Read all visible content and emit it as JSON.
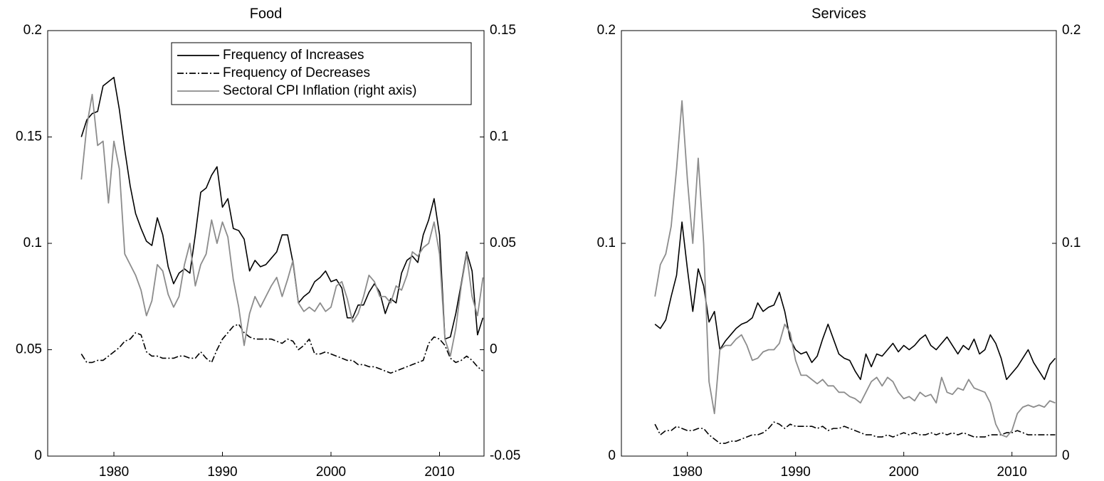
{
  "chart_data": [
    {
      "type": "line",
      "title": "Food",
      "x": [
        1977,
        1977.5,
        1978,
        1978.5,
        1979,
        1979.5,
        1980,
        1980.5,
        1981,
        1981.5,
        1982,
        1982.5,
        1983,
        1983.5,
        1984,
        1984.5,
        1985,
        1985.5,
        1986,
        1986.5,
        1987,
        1987.5,
        1988,
        1988.5,
        1989,
        1989.5,
        1990,
        1990.5,
        1991,
        1991.5,
        1992,
        1992.5,
        1993,
        1993.5,
        1994,
        1994.5,
        1995,
        1995.5,
        1996,
        1996.5,
        1997,
        1997.5,
        1998,
        1998.5,
        1999,
        1999.5,
        2000,
        2000.5,
        2001,
        2001.5,
        2002,
        2002.5,
        2003,
        2003.5,
        2004,
        2004.5,
        2005,
        2005.5,
        2006,
        2006.5,
        2007,
        2007.5,
        2008,
        2008.5,
        2009,
        2009.5,
        2010,
        2010.5,
        2011,
        2011.5,
        2012,
        2012.5,
        2013,
        2013.5,
        2014
      ],
      "series": [
        {
          "name": "Frequency of Increases",
          "color": "#000000",
          "dash": "solid",
          "values": [
            0.15,
            0.158,
            0.161,
            0.162,
            0.174,
            0.176,
            0.178,
            0.163,
            0.144,
            0.127,
            0.114,
            0.107,
            0.101,
            0.099,
            0.112,
            0.104,
            0.089,
            0.081,
            0.086,
            0.088,
            0.086,
            0.104,
            0.124,
            0.126,
            0.132,
            0.136,
            0.117,
            0.121,
            0.107,
            0.106,
            0.102,
            0.087,
            0.092,
            0.089,
            0.09,
            0.093,
            0.096,
            0.104,
            0.104,
            0.091,
            0.072,
            0.075,
            0.077,
            0.082,
            0.084,
            0.087,
            0.082,
            0.083,
            0.079,
            0.065,
            0.065,
            0.071,
            0.071,
            0.077,
            0.081,
            0.077,
            0.067,
            0.074,
            0.072,
            0.086,
            0.092,
            0.094,
            0.091,
            0.104,
            0.111,
            0.121,
            0.104,
            0.055,
            0.056,
            0.067,
            0.081,
            0.096,
            0.087,
            0.057,
            0.065
          ]
        },
        {
          "name": "Frequency of Decreases",
          "color": "#000000",
          "dash": "dashdot",
          "values": [
            0.048,
            0.044,
            0.044,
            0.045,
            0.045,
            0.047,
            0.049,
            0.051,
            0.054,
            0.055,
            0.058,
            0.057,
            0.049,
            0.047,
            0.047,
            0.046,
            0.046,
            0.046,
            0.047,
            0.047,
            0.046,
            0.046,
            0.049,
            0.046,
            0.044,
            0.05,
            0.055,
            0.058,
            0.061,
            0.062,
            0.058,
            0.056,
            0.055,
            0.055,
            0.055,
            0.055,
            0.054,
            0.053,
            0.055,
            0.054,
            0.05,
            0.052,
            0.055,
            0.048,
            0.048,
            0.049,
            0.048,
            0.047,
            0.046,
            0.045,
            0.045,
            0.043,
            0.043,
            0.042,
            0.042,
            0.041,
            0.04,
            0.039,
            0.04,
            0.041,
            0.042,
            0.043,
            0.044,
            0.045,
            0.053,
            0.056,
            0.055,
            0.052,
            0.046,
            0.044,
            0.045,
            0.047,
            0.045,
            0.042,
            0.04
          ]
        },
        {
          "name": "Sectoral CPI Inflation (right axis)",
          "color": "#8c8c8c",
          "dash": "solid",
          "axis": "y2",
          "values": [
            0.08,
            0.105,
            0.12,
            0.096,
            0.098,
            0.069,
            0.098,
            0.085,
            0.045,
            0.04,
            0.035,
            0.028,
            0.016,
            0.023,
            0.04,
            0.037,
            0.026,
            0.02,
            0.025,
            0.04,
            0.05,
            0.03,
            0.04,
            0.045,
            0.061,
            0.05,
            0.06,
            0.053,
            0.033,
            0.02,
            0.002,
            0.017,
            0.025,
            0.02,
            0.025,
            0.03,
            0.034,
            0.025,
            0.033,
            0.042,
            0.022,
            0.018,
            0.02,
            0.018,
            0.022,
            0.018,
            0.02,
            0.03,
            0.032,
            0.024,
            0.013,
            0.017,
            0.025,
            0.035,
            0.032,
            0.025,
            0.025,
            0.022,
            0.03,
            0.028,
            0.035,
            0.046,
            0.044,
            0.048,
            0.05,
            0.06,
            0.045,
            0.005,
            -0.003,
            0.01,
            0.03,
            0.045,
            0.025,
            0.016,
            0.034
          ]
        }
      ],
      "xlim": [
        1973.9,
        2014.1
      ],
      "xticks": [
        1980,
        1990,
        2000,
        2010
      ],
      "ylim": [
        0,
        0.2
      ],
      "yticks": [
        0,
        0.05,
        0.1,
        0.15,
        0.2
      ],
      "y2lim": [
        -0.05,
        0.15
      ],
      "y2ticks": [
        -0.05,
        0,
        0.05,
        0.1,
        0.15
      ],
      "legend": "upper right"
    },
    {
      "type": "line",
      "title": "Services",
      "x": [
        1977,
        1977.5,
        1978,
        1978.5,
        1979,
        1979.5,
        1980,
        1980.5,
        1981,
        1981.5,
        1982,
        1982.5,
        1983,
        1983.5,
        1984,
        1984.5,
        1985,
        1985.5,
        1986,
        1986.5,
        1987,
        1987.5,
        1988,
        1988.5,
        1989,
        1989.5,
        1990,
        1990.5,
        1991,
        1991.5,
        1992,
        1992.5,
        1993,
        1993.5,
        1994,
        1994.5,
        1995,
        1995.5,
        1996,
        1996.5,
        1997,
        1997.5,
        1998,
        1998.5,
        1999,
        1999.5,
        2000,
        2000.5,
        2001,
        2001.5,
        2002,
        2002.5,
        2003,
        2003.5,
        2004,
        2004.5,
        2005,
        2005.5,
        2006,
        2006.5,
        2007,
        2007.5,
        2008,
        2008.5,
        2009,
        2009.5,
        2010,
        2010.5,
        2011,
        2011.5,
        2012,
        2012.5,
        2013,
        2013.5,
        2014
      ],
      "series": [
        {
          "color": "#000000",
          "dash": "solid",
          "values": [
            0.062,
            0.06,
            0.064,
            0.075,
            0.085,
            0.11,
            0.088,
            0.068,
            0.088,
            0.08,
            0.063,
            0.068,
            0.05,
            0.054,
            0.057,
            0.06,
            0.062,
            0.063,
            0.065,
            0.072,
            0.068,
            0.07,
            0.071,
            0.077,
            0.068,
            0.055,
            0.05,
            0.048,
            0.049,
            0.044,
            0.047,
            0.055,
            0.062,
            0.055,
            0.048,
            0.046,
            0.045,
            0.04,
            0.036,
            0.048,
            0.042,
            0.048,
            0.047,
            0.05,
            0.053,
            0.049,
            0.052,
            0.05,
            0.052,
            0.055,
            0.057,
            0.052,
            0.05,
            0.053,
            0.056,
            0.052,
            0.048,
            0.052,
            0.05,
            0.055,
            0.048,
            0.05,
            0.057,
            0.053,
            0.046,
            0.036,
            0.039,
            0.042,
            0.046,
            0.05,
            0.044,
            0.04,
            0.036,
            0.043,
            0.046
          ]
        },
        {
          "color": "#000000",
          "dash": "dashdot",
          "values": [
            0.015,
            0.01,
            0.012,
            0.012,
            0.014,
            0.013,
            0.012,
            0.012,
            0.013,
            0.013,
            0.01,
            0.008,
            0.006,
            0.006,
            0.007,
            0.007,
            0.008,
            0.009,
            0.01,
            0.01,
            0.011,
            0.013,
            0.016,
            0.015,
            0.013,
            0.015,
            0.014,
            0.014,
            0.014,
            0.014,
            0.013,
            0.014,
            0.012,
            0.013,
            0.013,
            0.014,
            0.013,
            0.012,
            0.011,
            0.01,
            0.01,
            0.009,
            0.009,
            0.01,
            0.009,
            0.01,
            0.011,
            0.01,
            0.011,
            0.01,
            0.01,
            0.011,
            0.01,
            0.011,
            0.01,
            0.011,
            0.01,
            0.011,
            0.01,
            0.009,
            0.009,
            0.009,
            0.01,
            0.01,
            0.01,
            0.011,
            0.011,
            0.012,
            0.011,
            0.01,
            0.01,
            0.01,
            0.01,
            0.01,
            0.01
          ]
        },
        {
          "color": "#8c8c8c",
          "dash": "solid",
          "axis": "y2",
          "values": [
            0.075,
            0.09,
            0.095,
            0.108,
            0.135,
            0.167,
            0.13,
            0.1,
            0.14,
            0.1,
            0.035,
            0.02,
            0.05,
            0.052,
            0.052,
            0.055,
            0.057,
            0.052,
            0.045,
            0.046,
            0.049,
            0.05,
            0.05,
            0.053,
            0.062,
            0.058,
            0.045,
            0.038,
            0.038,
            0.036,
            0.034,
            0.036,
            0.033,
            0.033,
            0.03,
            0.03,
            0.028,
            0.027,
            0.025,
            0.03,
            0.035,
            0.037,
            0.033,
            0.037,
            0.035,
            0.03,
            0.027,
            0.028,
            0.026,
            0.03,
            0.028,
            0.029,
            0.025,
            0.037,
            0.03,
            0.029,
            0.032,
            0.031,
            0.036,
            0.032,
            0.031,
            0.03,
            0.025,
            0.015,
            0.01,
            0.009,
            0.012,
            0.02,
            0.023,
            0.024,
            0.023,
            0.024,
            0.023,
            0.026,
            0.025
          ]
        }
      ],
      "xlim": [
        1973.9,
        2014.1
      ],
      "xticks": [
        1980,
        1990,
        2000,
        2010
      ],
      "ylim": [
        0,
        0.2
      ],
      "yticks": [
        0,
        0.1,
        0.2
      ],
      "y2lim": [
        0,
        0.2
      ],
      "y2ticks": [
        0,
        0.1,
        0.2
      ]
    }
  ]
}
